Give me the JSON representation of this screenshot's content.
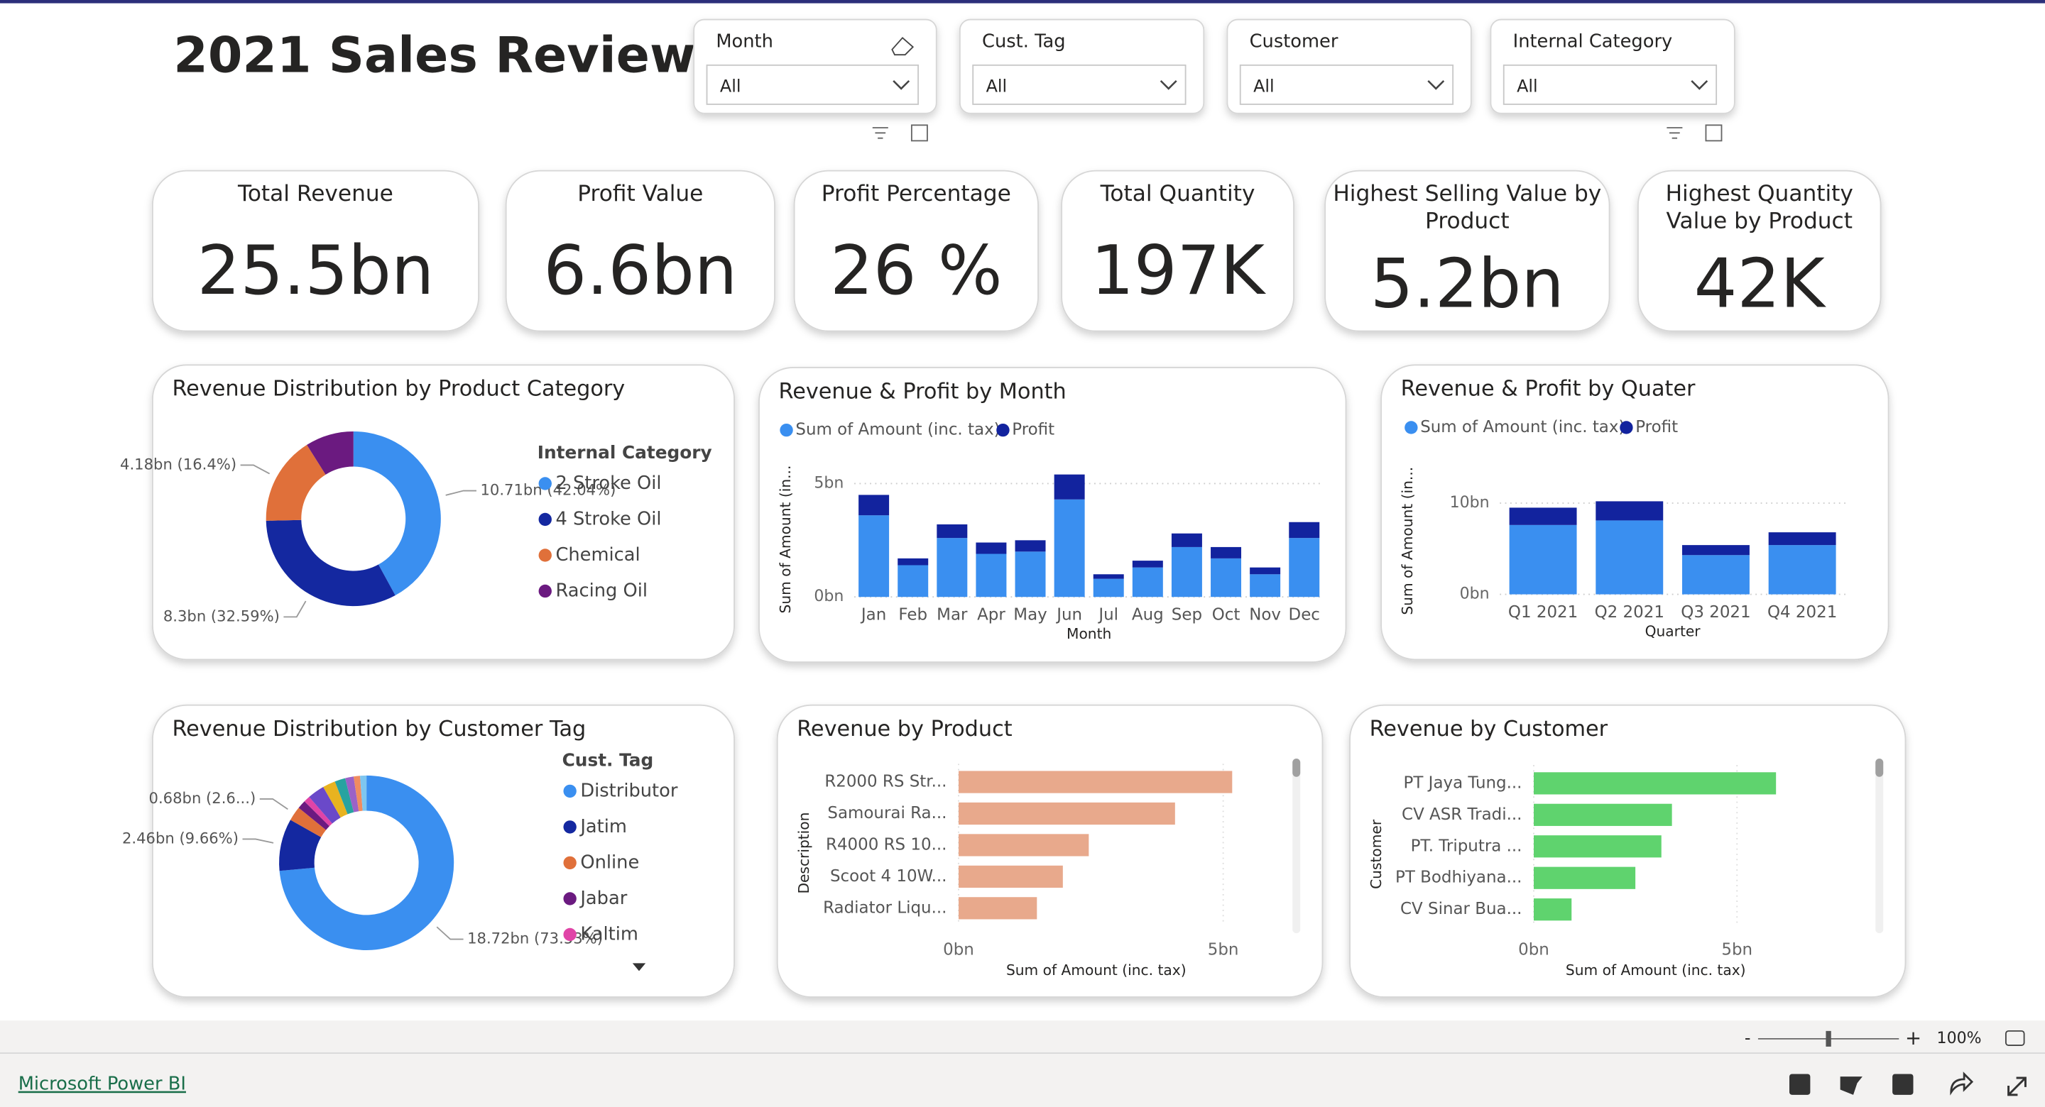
{
  "header": {
    "title": "2021 Sales Review"
  },
  "filters": [
    {
      "label": "Month",
      "value": "All"
    },
    {
      "label": "Cust. Tag",
      "value": "All"
    },
    {
      "label": "Customer",
      "value": "All"
    },
    {
      "label": "Internal Category",
      "value": "All"
    }
  ],
  "kpis": [
    {
      "title": "Total Revenue",
      "value": "25.5bn"
    },
    {
      "title": "Profit Value",
      "value": "6.6bn"
    },
    {
      "title": "Profit Percentage",
      "value": "26 %"
    },
    {
      "title": "Total Quantity",
      "value": "197K"
    },
    {
      "title": "Highest Selling Value by Product",
      "value": "5.2bn"
    },
    {
      "title": "Highest Quantity Value by Product",
      "value": "42K"
    }
  ],
  "chart_data": [
    {
      "type": "donut",
      "title": "Revenue Distribution by Product Category",
      "legend_title": "Internal Category",
      "categories": [
        "2 Stroke Oil",
        "4 Stroke Oil",
        "Chemical",
        "Racing Oil"
      ],
      "values": [
        10.71,
        8.3,
        4.18,
        2.28
      ],
      "value_labels": [
        "10.71bn (42.04%)",
        "8.3bn (32.59%)",
        "4.18bn (16.4%)",
        null
      ],
      "colors": [
        "#3a8ff0",
        "#1428a0",
        "#e0703a",
        "#6b1a80"
      ]
    },
    {
      "type": "donut",
      "title": "Revenue Distribution by Customer Tag",
      "legend_title": "Cust. Tag",
      "categories": [
        "Distributor",
        "Jatim",
        "Online",
        "Jabar",
        "Kaltim",
        null,
        null,
        null,
        null,
        null,
        null
      ],
      "values": [
        18.72,
        2.46,
        0.68,
        0.4,
        0.3,
        0.8,
        0.6,
        0.5,
        0.4,
        0.3,
        0.3
      ],
      "value_labels": [
        "18.72bn (73.53%)",
        "2.46bn (9.66%)",
        "0.68bn (2.6...)",
        null,
        null,
        null,
        null,
        null,
        null,
        null,
        null
      ],
      "colors": [
        "#3a8ff0",
        "#1428a0",
        "#e0703a",
        "#6b1a80",
        "#e044a7",
        "#6a49c9",
        "#e8b320",
        "#27a3a0",
        "#9b62c7",
        "#f08c60",
        "#7ec6f0"
      ]
    },
    {
      "type": "stacked_bar",
      "title": "Revenue & Profit by Month",
      "categories": [
        "Jan",
        "Feb",
        "Mar",
        "Apr",
        "May",
        "Jun",
        "Jul",
        "Aug",
        "Sep",
        "Oct",
        "Nov",
        "Dec"
      ],
      "series": [
        {
          "name": "Sum of Amount (inc. tax)",
          "color": "#3a8ff0",
          "values": [
            3.6,
            1.4,
            2.6,
            1.9,
            2.0,
            4.3,
            0.8,
            1.3,
            2.2,
            1.7,
            1.0,
            2.6
          ]
        },
        {
          "name": "Profit",
          "color": "#12239e",
          "values": [
            0.9,
            0.3,
            0.6,
            0.5,
            0.5,
            1.1,
            0.2,
            0.3,
            0.6,
            0.5,
            0.3,
            0.7
          ]
        }
      ],
      "xlabel": "Month",
      "ylabel": "Sum of Amount (in...",
      "ylim": [
        0,
        6
      ],
      "yticks": [
        {
          "value": 0,
          "label": "0bn"
        },
        {
          "value": 5,
          "label": "5bn"
        }
      ],
      "grid": true
    },
    {
      "type": "stacked_bar",
      "title": "Revenue & Profit by Quater",
      "categories": [
        "Q1 2021",
        "Q2 2021",
        "Q3 2021",
        "Q4 2021"
      ],
      "series": [
        {
          "name": "Sum of Amount (inc. tax)",
          "color": "#3a8ff0",
          "values": [
            7.6,
            8.1,
            4.3,
            5.4
          ]
        },
        {
          "name": "Profit",
          "color": "#12239e",
          "values": [
            1.9,
            2.1,
            1.1,
            1.4
          ]
        }
      ],
      "xlabel": "Quarter",
      "ylabel": "Sum of Amount (in...",
      "ylim": [
        0,
        14
      ],
      "yticks": [
        {
          "value": 0,
          "label": "0bn"
        },
        {
          "value": 10,
          "label": "10bn"
        }
      ],
      "grid": true
    },
    {
      "type": "hbar",
      "title": "Revenue by Product",
      "categories": [
        "R2000 RS Str...",
        "Samourai Ra...",
        "R4000 RS 10...",
        "Scoot 4 10W...",
        "Radiator Liqu..."
      ],
      "values": [
        5.17,
        4.09,
        2.46,
        1.97,
        1.48
      ],
      "color": "#e8a98c",
      "xlabel": "Sum of Amount (inc. tax)",
      "ylabel": "Description",
      "xlim": [
        0,
        5.2
      ],
      "xticks": [
        {
          "value": 0,
          "label": "0bn"
        },
        {
          "value": 5,
          "label": "5bn"
        }
      ],
      "grid": true
    },
    {
      "type": "hbar",
      "title": "Revenue by Customer",
      "categories": [
        "PT Jaya Tung...",
        "CV ASR Tradi...",
        "PT. Triputra ...",
        "PT Bodhiyana...",
        "CV Sinar Bua..."
      ],
      "values": [
        5.96,
        3.4,
        3.14,
        2.5,
        0.93
      ],
      "color": "#5fd36e",
      "xlabel": "Sum of Amount (inc. tax)",
      "ylabel": "Customer",
      "xlim": [
        0,
        6
      ],
      "xticks": [
        {
          "value": 0,
          "label": "0bn"
        },
        {
          "value": 5,
          "label": "5bn"
        }
      ],
      "grid": true
    }
  ],
  "footer": {
    "brand": "Microsoft Power BI",
    "zoom": "100%"
  }
}
